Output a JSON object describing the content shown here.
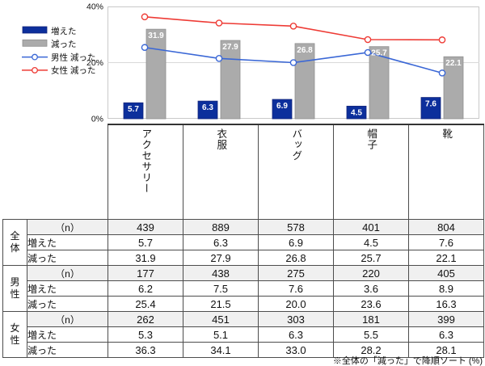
{
  "chart_data": {
    "type": "bar",
    "subtype": "bar-line-combo",
    "categories": [
      "アクセサリー",
      "衣服",
      "バッグ",
      "帽子",
      "靴"
    ],
    "series": [
      {
        "name": "増えた",
        "type": "bar",
        "color": "#0c2f9c",
        "border": "#13257a",
        "values": [
          5.7,
          6.3,
          6.9,
          4.5,
          7.6
        ]
      },
      {
        "name": "減った",
        "type": "bar",
        "color": "#ababab",
        "border": "#8f8f8f",
        "values": [
          31.9,
          27.9,
          26.8,
          25.7,
          22.1
        ]
      },
      {
        "name": "男性 減った",
        "type": "line",
        "color": "#3a67d6",
        "border": "#3a67d6",
        "values": [
          25.4,
          21.5,
          20.0,
          23.6,
          16.3
        ]
      },
      {
        "name": "女性 減った",
        "type": "line",
        "color": "#ee3b35",
        "border": "#ee3b35",
        "values": [
          36.3,
          34.1,
          33.0,
          28.2,
          28.1
        ]
      }
    ],
    "ylim": [
      0,
      40
    ],
    "yticks": [
      {
        "value": 0,
        "label": "0%"
      },
      {
        "value": 20,
        "label": "20%"
      },
      {
        "value": 40,
        "label": "40%"
      }
    ],
    "legend_position": "left",
    "grid": true,
    "title": "",
    "xlabel": "",
    "ylabel": ""
  },
  "table": {
    "columns": [
      "アクセサリー",
      "衣服",
      "バッグ",
      "帽子",
      "靴"
    ],
    "groups": [
      {
        "name": "全体",
        "rows": [
          {
            "label": "（n）",
            "kind": "n",
            "values": [
              "439",
              "889",
              "578",
              "401",
              "804"
            ]
          },
          {
            "label": "増えた",
            "kind": "data",
            "values": [
              "5.7",
              "6.3",
              "6.9",
              "4.5",
              "7.6"
            ]
          },
          {
            "label": "減った",
            "kind": "data",
            "highlight": true,
            "values": [
              "31.9",
              "27.9",
              "26.8",
              "25.7",
              "22.1"
            ]
          }
        ]
      },
      {
        "name": "男性",
        "rows": [
          {
            "label": "（n）",
            "kind": "n",
            "values": [
              "177",
              "438",
              "275",
              "220",
              "405"
            ]
          },
          {
            "label": "増えた",
            "kind": "data",
            "values": [
              "6.2",
              "7.5",
              "7.6",
              "3.6",
              "8.9"
            ]
          },
          {
            "label": "減った",
            "kind": "data",
            "values": [
              "25.4",
              "21.5",
              "20.0",
              "23.6",
              "16.3"
            ]
          }
        ]
      },
      {
        "name": "女性",
        "rows": [
          {
            "label": "（n）",
            "kind": "n",
            "values": [
              "262",
              "451",
              "303",
              "181",
              "399"
            ]
          },
          {
            "label": "増えた",
            "kind": "data",
            "values": [
              "5.3",
              "5.1",
              "6.3",
              "5.5",
              "6.3"
            ]
          },
          {
            "label": "減った",
            "kind": "data",
            "highlight": true,
            "values": [
              "36.3",
              "34.1",
              "33.0",
              "28.2",
              "28.1"
            ]
          }
        ]
      }
    ]
  },
  "footnote": "※全体の「減った」で降順ソート (%)",
  "colors": {
    "bar_increase": "#0c2f9c",
    "bar_decrease": "#ababab",
    "line_male": "#3a67d6",
    "line_female": "#ee3b35",
    "highlight_border": "#ee2e2e",
    "table_border": "#4d4d4d",
    "plot_border": "#c9c9c9",
    "gridline": "#d9d9d9",
    "n_row_bg": "#f0f0f0",
    "bar_label_text": "#ffffff"
  }
}
